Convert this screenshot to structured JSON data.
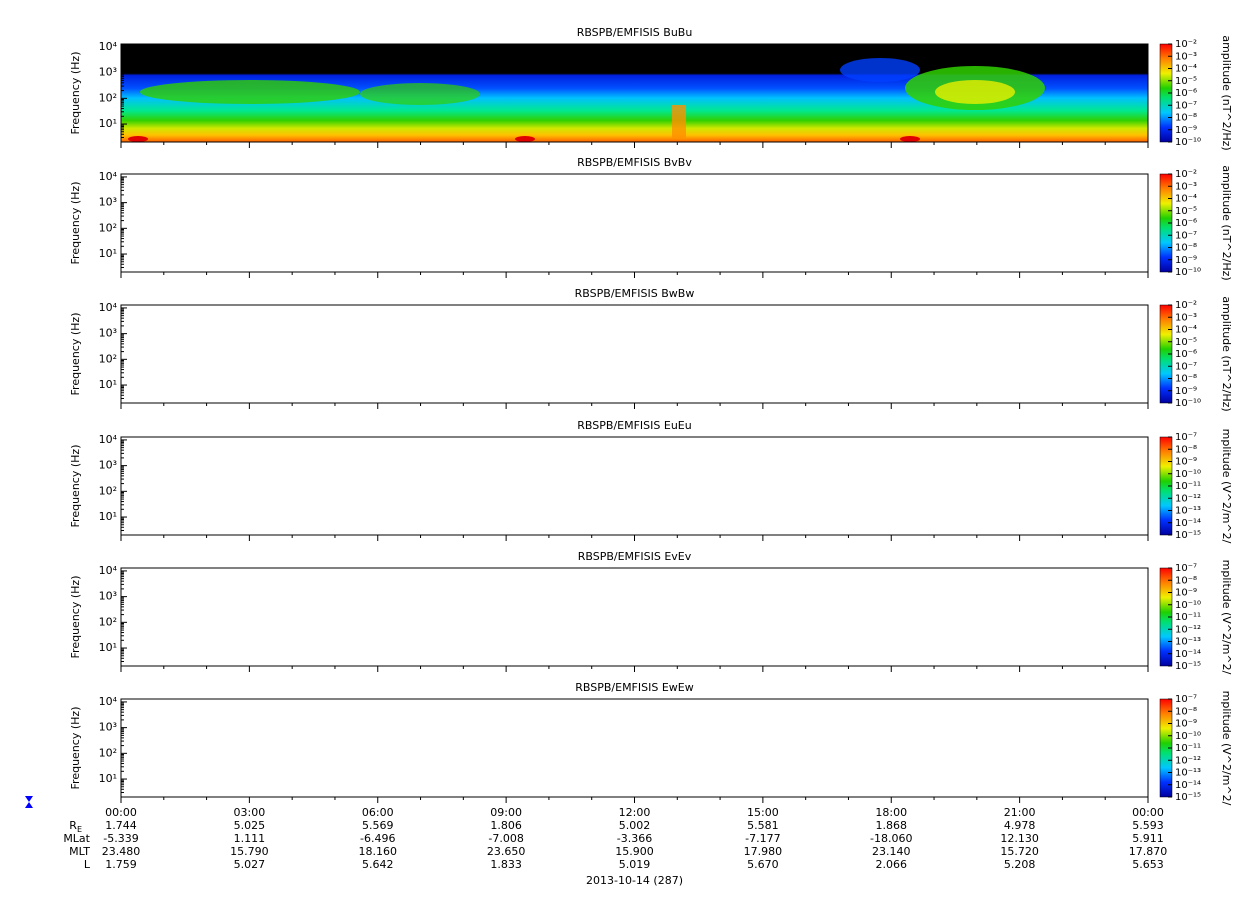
{
  "chart_data": [
    {
      "type": "spectrogram",
      "title": "RBSPB/EMFISIS  BuBu",
      "ylabel": "Frequency (Hz)",
      "yscale": "log",
      "ylim": [
        2,
        13000
      ],
      "yticks": [
        {
          "value": 10,
          "label": "10¹"
        },
        {
          "value": 100,
          "label": "10²"
        },
        {
          "value": 1000,
          "label": "10³"
        },
        {
          "value": 10000,
          "label": "10⁴"
        }
      ],
      "colorbar_label": "amplitude (nT^2/Hz)",
      "clim": [
        1e-10,
        0.01
      ],
      "cticks": [
        {
          "value": 1e-10,
          "label": "10⁻¹⁰"
        },
        {
          "value": 1e-09,
          "label": "10⁻⁹"
        },
        {
          "value": 1e-08,
          "label": "10⁻⁸"
        },
        {
          "value": 1e-07,
          "label": "10⁻⁷"
        },
        {
          "value": 1e-06,
          "label": "10⁻⁶"
        },
        {
          "value": 1e-05,
          "label": "10⁻⁵"
        },
        {
          "value": 0.0001,
          "label": "10⁻⁴"
        },
        {
          "value": 0.001,
          "label": "10⁻³"
        },
        {
          "value": 0.01,
          "label": "10⁻²"
        }
      ]
    },
    {
      "type": "spectrogram",
      "title": "RBSPB/EMFISIS  BvBv",
      "ylabel": "Frequency (Hz)",
      "yscale": "log",
      "ylim": [
        2,
        13000
      ],
      "yticks": [
        {
          "value": 10,
          "label": "10¹"
        },
        {
          "value": 100,
          "label": "10²"
        },
        {
          "value": 1000,
          "label": "10³"
        },
        {
          "value": 10000,
          "label": "10⁴"
        }
      ],
      "colorbar_label": "amplitude (nT^2/Hz)",
      "clim": [
        1e-10,
        0.01
      ],
      "cticks": [
        {
          "value": 1e-10,
          "label": "10⁻¹⁰"
        },
        {
          "value": 1e-09,
          "label": "10⁻⁹"
        },
        {
          "value": 1e-08,
          "label": "10⁻⁸"
        },
        {
          "value": 1e-07,
          "label": "10⁻⁷"
        },
        {
          "value": 1e-06,
          "label": "10⁻⁶"
        },
        {
          "value": 1e-05,
          "label": "10⁻⁵"
        },
        {
          "value": 0.0001,
          "label": "10⁻⁴"
        },
        {
          "value": 0.001,
          "label": "10⁻³"
        },
        {
          "value": 0.01,
          "label": "10⁻²"
        }
      ]
    },
    {
      "type": "spectrogram",
      "title": "RBSPB/EMFISIS  BwBw",
      "ylabel": "Frequency (Hz)",
      "yscale": "log",
      "ylim": [
        2,
        13000
      ],
      "yticks": [
        {
          "value": 10,
          "label": "10¹"
        },
        {
          "value": 100,
          "label": "10²"
        },
        {
          "value": 1000,
          "label": "10³"
        },
        {
          "value": 10000,
          "label": "10⁴"
        }
      ],
      "colorbar_label": "amplitude (nT^2/Hz)",
      "clim": [
        1e-10,
        0.01
      ],
      "cticks": [
        {
          "value": 1e-10,
          "label": "10⁻¹⁰"
        },
        {
          "value": 1e-09,
          "label": "10⁻⁹"
        },
        {
          "value": 1e-08,
          "label": "10⁻⁸"
        },
        {
          "value": 1e-07,
          "label": "10⁻⁷"
        },
        {
          "value": 1e-06,
          "label": "10⁻⁶"
        },
        {
          "value": 1e-05,
          "label": "10⁻⁵"
        },
        {
          "value": 0.0001,
          "label": "10⁻⁴"
        },
        {
          "value": 0.001,
          "label": "10⁻³"
        },
        {
          "value": 0.01,
          "label": "10⁻²"
        }
      ]
    },
    {
      "type": "spectrogram",
      "title": "RBSPB/EMFISIS  EuEu",
      "ylabel": "Frequency (Hz)",
      "yscale": "log",
      "ylim": [
        2,
        13000
      ],
      "yticks": [
        {
          "value": 10,
          "label": "10¹"
        },
        {
          "value": 100,
          "label": "10²"
        },
        {
          "value": 1000,
          "label": "10³"
        },
        {
          "value": 10000,
          "label": "10⁴"
        }
      ],
      "colorbar_label": "mplitude (V^2/m^2/",
      "clim": [
        1e-15,
        1e-07
      ],
      "cticks": [
        {
          "value": 1e-15,
          "label": "10⁻¹⁵"
        },
        {
          "value": 1e-14,
          "label": "10⁻¹⁴"
        },
        {
          "value": 1e-13,
          "label": "10⁻¹³"
        },
        {
          "value": 1e-12,
          "label": "10⁻¹²"
        },
        {
          "value": 1e-11,
          "label": "10⁻¹¹"
        },
        {
          "value": 1e-10,
          "label": "10⁻¹⁰"
        },
        {
          "value": 1e-09,
          "label": "10⁻⁹"
        },
        {
          "value": 1e-08,
          "label": "10⁻⁸"
        },
        {
          "value": 1e-07,
          "label": "10⁻⁷"
        }
      ]
    },
    {
      "type": "spectrogram",
      "title": "RBSPB/EMFISIS  EvEv",
      "ylabel": "Frequency (Hz)",
      "yscale": "log",
      "ylim": [
        2,
        13000
      ],
      "yticks": [
        {
          "value": 10,
          "label": "10¹"
        },
        {
          "value": 100,
          "label": "10²"
        },
        {
          "value": 1000,
          "label": "10³"
        },
        {
          "value": 10000,
          "label": "10⁴"
        }
      ],
      "colorbar_label": "mplitude (V^2/m^2/",
      "clim": [
        1e-15,
        1e-07
      ],
      "cticks": [
        {
          "value": 1e-15,
          "label": "10⁻¹⁵"
        },
        {
          "value": 1e-14,
          "label": "10⁻¹⁴"
        },
        {
          "value": 1e-13,
          "label": "10⁻¹³"
        },
        {
          "value": 1e-12,
          "label": "10⁻¹²"
        },
        {
          "value": 1e-11,
          "label": "10⁻¹¹"
        },
        {
          "value": 1e-10,
          "label": "10⁻¹⁰"
        },
        {
          "value": 1e-09,
          "label": "10⁻⁹"
        },
        {
          "value": 1e-08,
          "label": "10⁻⁸"
        },
        {
          "value": 1e-07,
          "label": "10⁻⁷"
        }
      ]
    },
    {
      "type": "spectrogram",
      "title": "RBSPB/EMFISIS  EwEw",
      "ylabel": "Frequency (Hz)",
      "yscale": "log",
      "ylim": [
        2,
        13000
      ],
      "yticks": [
        {
          "value": 10,
          "label": "10¹"
        },
        {
          "value": 100,
          "label": "10²"
        },
        {
          "value": 1000,
          "label": "10³"
        },
        {
          "value": 10000,
          "label": "10⁴"
        }
      ],
      "colorbar_label": "mplitude (V^2/m^2/",
      "clim": [
        1e-15,
        1e-07
      ],
      "cticks": [
        {
          "value": 1e-15,
          "label": "10⁻¹⁵"
        },
        {
          "value": 1e-14,
          "label": "10⁻¹⁴"
        },
        {
          "value": 1e-13,
          "label": "10⁻¹³"
        },
        {
          "value": 1e-12,
          "label": "10⁻¹²"
        },
        {
          "value": 1e-11,
          "label": "10⁻¹¹"
        },
        {
          "value": 1e-10,
          "label": "10⁻¹⁰"
        },
        {
          "value": 1e-09,
          "label": "10⁻⁹"
        },
        {
          "value": 1e-08,
          "label": "10⁻⁸"
        },
        {
          "value": 1e-07,
          "label": "10⁻⁷"
        }
      ]
    }
  ],
  "time_axis": {
    "xlim": [
      0,
      24
    ],
    "xticks": [
      {
        "value": 0,
        "label": "00:00"
      },
      {
        "value": 3,
        "label": "03:00"
      },
      {
        "value": 6,
        "label": "06:00"
      },
      {
        "value": 9,
        "label": "09:00"
      },
      {
        "value": 12,
        "label": "12:00"
      },
      {
        "value": 15,
        "label": "15:00"
      },
      {
        "value": 18,
        "label": "18:00"
      },
      {
        "value": 21,
        "label": "21:00"
      },
      {
        "value": 24,
        "label": "00:00"
      }
    ],
    "date": "2013-10-14 (287)",
    "ephemeris": [
      {
        "label": "R",
        "sub": "E",
        "values": [
          "1.744",
          "5.025",
          "5.569",
          "1.806",
          "5.002",
          "5.581",
          "1.868",
          "4.978",
          "5.593"
        ]
      },
      {
        "label": "MLat",
        "values": [
          "-5.339",
          "1.111",
          "-6.496",
          "-7.008",
          "-3.366",
          "-7.177",
          "-18.060",
          "12.130",
          "5.911"
        ]
      },
      {
        "label": "MLT",
        "values": [
          "23.480",
          "15.790",
          "18.160",
          "23.650",
          "15.900",
          "17.980",
          "23.140",
          "15.720",
          "17.870"
        ]
      },
      {
        "label": "L",
        "values": [
          "1.759",
          "5.027",
          "5.642",
          "1.833",
          "5.019",
          "5.670",
          "2.066",
          "5.208",
          "5.653"
        ]
      }
    ]
  }
}
